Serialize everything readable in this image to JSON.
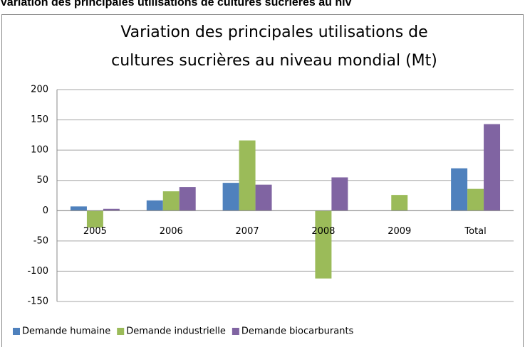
{
  "page_header": "Variation des principales utilisations de cultures sucrières au niv",
  "chart_data": {
    "type": "bar",
    "title": [
      "Variation des principales utilisations de",
      "cultures sucrières au niveau mondial (Mt)"
    ],
    "categories": [
      "2005",
      "2006",
      "2007",
      "2008",
      "2009",
      "Total"
    ],
    "series": [
      {
        "name": "Demande humaine",
        "color": "#4f81bd",
        "values": [
          7,
          17,
          46,
          null,
          null,
          70
        ]
      },
      {
        "name": "Demande industrielle",
        "color": "#9bbb59",
        "values": [
          -28,
          32,
          116,
          -112,
          26,
          36
        ]
      },
      {
        "name": "Demande biocarburants",
        "color": "#8064a2",
        "values": [
          3,
          39,
          43,
          55,
          null,
          143
        ]
      }
    ],
    "ylim": [
      -150,
      200
    ],
    "yticks": [
      -150,
      -100,
      -50,
      0,
      50,
      100,
      150,
      200
    ],
    "grid": true,
    "legend": "bottom"
  }
}
